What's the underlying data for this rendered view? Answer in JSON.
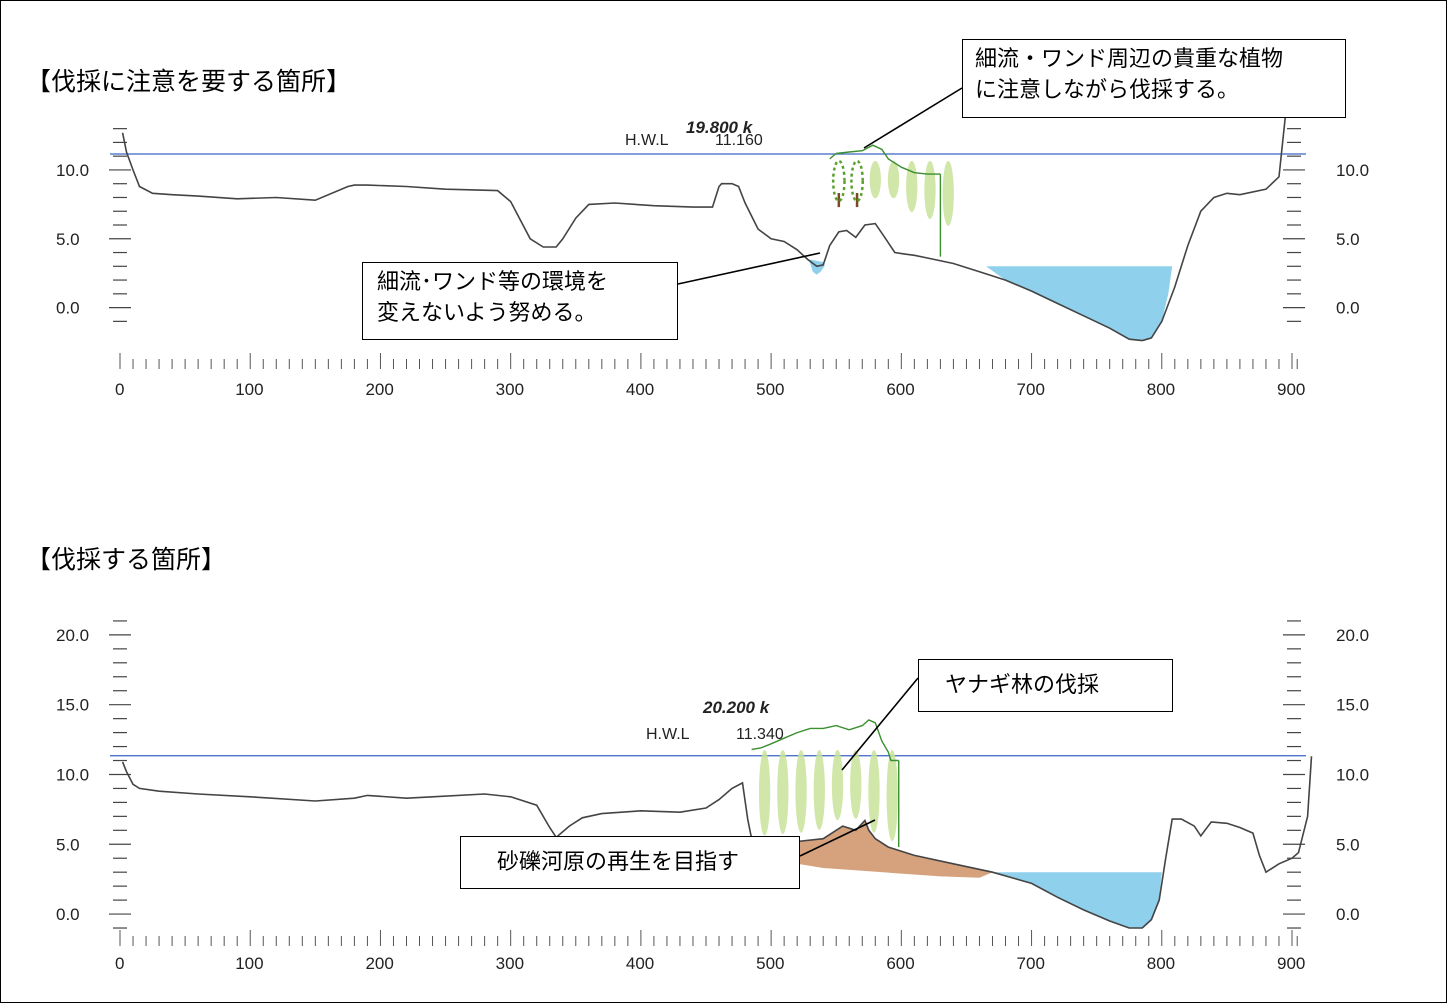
{
  "headings": {
    "top": "【伐採に注意を要する箇所】",
    "bottom": "【伐採する箇所】"
  },
  "chart_data": [
    {
      "type": "line",
      "section": "19.800 k",
      "hwl_label": "H.W.L",
      "hwl_value": "11.160",
      "hwl_level": 11.16,
      "xlim": [
        0,
        900
      ],
      "ylim": [
        -2.5,
        14.5
      ],
      "x_ticks": [
        "0",
        "100",
        "200",
        "300",
        "400",
        "500",
        "600",
        "700",
        "800",
        "900"
      ],
      "y_ticks": [
        "10.0",
        "5.0",
        "0.0"
      ],
      "ground_profile": {
        "x": [
          2,
          5,
          10,
          15,
          25,
          40,
          60,
          90,
          120,
          150,
          175,
          180,
          190,
          220,
          250,
          290,
          300,
          315,
          325,
          335,
          340,
          350,
          360,
          380,
          410,
          440,
          455,
          460,
          462,
          465,
          470,
          475,
          480,
          490,
          500,
          510,
          520,
          528,
          535,
          540,
          545,
          552,
          558,
          565,
          572,
          580,
          588,
          595,
          602,
          610,
          620,
          640,
          660,
          680,
          700,
          720,
          740,
          760,
          775,
          785,
          792,
          800,
          810,
          820,
          830,
          840,
          850,
          860,
          880,
          890,
          895
        ],
        "y": [
          12.7,
          11.3,
          10.0,
          8.8,
          8.3,
          8.2,
          8.1,
          7.9,
          8.0,
          7.8,
          8.8,
          8.9,
          8.9,
          8.8,
          8.6,
          8.5,
          7.7,
          5.0,
          4.4,
          4.4,
          5.0,
          6.5,
          7.5,
          7.6,
          7.4,
          7.3,
          7.3,
          8.8,
          9.0,
          9.0,
          9.0,
          8.8,
          7.6,
          5.7,
          5.0,
          4.8,
          4.2,
          3.5,
          3.0,
          3.1,
          4.5,
          5.5,
          5.6,
          5.1,
          6.0,
          6.1,
          5.0,
          4.0,
          3.9,
          3.8,
          3.6,
          3.2,
          2.6,
          2.0,
          1.2,
          0.3,
          -0.6,
          -1.5,
          -2.3,
          -2.4,
          -2.2,
          -1.0,
          1.5,
          4.5,
          7.0,
          8.0,
          8.3,
          8.2,
          8.6,
          9.5,
          14.0
        ]
      },
      "vegetation_top": {
        "x": [
          545,
          550,
          560,
          570,
          578,
          585,
          590,
          600,
          610,
          620,
          630
        ],
        "y": [
          10.8,
          11.2,
          11.3,
          11.4,
          11.8,
          11.5,
          10.8,
          10.2,
          9.8,
          9.7,
          9.7
        ]
      },
      "water_bodies": [
        {
          "x": [
            529,
            532,
            535,
            538,
            541,
            541,
            529
          ],
          "y": [
            3.5,
            2.6,
            2.4,
            2.6,
            3.0,
            3.3,
            3.5
          ]
        },
        {
          "x": [
            665,
            680,
            700,
            720,
            740,
            760,
            775,
            785,
            792,
            800,
            805,
            808
          ],
          "y": [
            3.0,
            2.0,
            1.2,
            0.3,
            -0.6,
            -1.5,
            -2.3,
            -2.4,
            -2.2,
            -1.0,
            1.0,
            3.0
          ]
        }
      ],
      "trees": {
        "x": [
          552,
          566,
          580,
          594,
          608,
          622,
          636
        ],
        "y": [
          7.3,
          7.3,
          7.5,
          7.5,
          6.5,
          6.0,
          5.5
        ]
      },
      "highlighted_trees": 2,
      "color_profile": "#444444",
      "color_vegetation": "#3a8f2e",
      "color_water": "#8fd0ec",
      "color_hwl": "#3a63c4",
      "color_tree": "#c8e39a",
      "color_highlight": "#5aa02c",
      "color_trunk": "#7a4a28"
    },
    {
      "type": "line",
      "section": "20.200 k",
      "hwl_label": "H.W.L",
      "hwl_value": "11.340",
      "hwl_level": 11.34,
      "xlim": [
        0,
        900
      ],
      "ylim": [
        -1.5,
        22.5
      ],
      "x_ticks": [
        "0",
        "100",
        "200",
        "300",
        "400",
        "500",
        "600",
        "700",
        "800",
        "900"
      ],
      "y_ticks": [
        "20.0",
        "15.0",
        "10.0",
        "5.0",
        "0.0"
      ],
      "ground_profile": {
        "x": [
          2,
          5,
          10,
          15,
          30,
          60,
          100,
          150,
          180,
          190,
          220,
          240,
          280,
          300,
          320,
          330,
          335,
          345,
          355,
          370,
          400,
          430,
          450,
          460,
          470,
          478,
          482,
          485,
          495,
          505,
          520,
          540,
          555,
          565,
          572,
          575,
          580,
          590,
          610,
          640,
          670,
          700,
          720,
          740,
          760,
          775,
          785,
          792,
          798,
          803,
          808,
          815,
          825,
          830,
          838,
          850,
          860,
          870,
          875,
          880,
          890,
          900,
          905,
          912,
          915
        ],
        "y": [
          10.9,
          10.2,
          9.3,
          9.0,
          8.8,
          8.6,
          8.4,
          8.1,
          8.3,
          8.5,
          8.3,
          8.4,
          8.6,
          8.4,
          7.8,
          6.2,
          5.5,
          6.3,
          6.9,
          7.2,
          7.4,
          7.3,
          7.6,
          8.2,
          9.0,
          9.4,
          6.8,
          5.4,
          5.2,
          4.8,
          5.2,
          5.4,
          6.3,
          6.0,
          6.7,
          6.0,
          5.4,
          4.8,
          4.2,
          3.6,
          3.0,
          2.2,
          1.2,
          0.3,
          -0.5,
          -1.0,
          -1.0,
          -0.4,
          1.0,
          4.0,
          6.8,
          6.8,
          6.3,
          5.6,
          6.6,
          6.5,
          6.2,
          5.8,
          4.2,
          3.0,
          3.6,
          4.0,
          4.4,
          7.0,
          11.3
        ]
      },
      "vegetation_top": {
        "x": [
          485,
          492,
          500,
          510,
          520,
          530,
          540,
          550,
          560,
          570,
          575,
          580,
          585,
          590,
          592,
          598
        ],
        "y": [
          11.8,
          11.9,
          12.2,
          12.6,
          13.0,
          13.3,
          13.3,
          13.5,
          13.2,
          13.5,
          13.9,
          13.7,
          12.4,
          11.6,
          11.0,
          11.0
        ]
      },
      "gravel_bar": {
        "x": [
          505,
          520,
          540,
          555,
          565,
          572,
          575,
          580,
          590,
          610,
          640,
          670,
          660,
          630,
          600,
          570,
          540,
          520,
          510
        ],
        "y": [
          4.8,
          5.2,
          5.4,
          6.3,
          6.0,
          6.7,
          6.0,
          5.4,
          4.8,
          4.2,
          3.6,
          3.0,
          2.6,
          2.7,
          2.9,
          3.1,
          3.3,
          3.6,
          4.0
        ]
      },
      "water_bodies": [
        {
          "x": [
            665,
            670,
            700,
            720,
            740,
            760,
            775,
            785,
            792,
            798,
            800
          ],
          "y": [
            3.0,
            3.0,
            2.2,
            1.2,
            0.3,
            -0.5,
            -1.0,
            -1.0,
            -0.4,
            1.0,
            3.0
          ]
        }
      ],
      "trees": {
        "x": [
          495,
          509,
          523,
          537,
          551,
          565,
          579,
          593
        ],
        "y": [
          5.2,
          5.3,
          5.4,
          5.6,
          6.3,
          6.4,
          5.4,
          4.8
        ]
      },
      "color_profile": "#444444",
      "color_vegetation": "#3a8f2e",
      "color_water": "#8fd0ec",
      "color_hwl": "#3a63c4",
      "color_tree": "#c8e39a",
      "color_gravel": "#d6a27e"
    }
  ],
  "callouts": {
    "top_right": {
      "line1": "細流・ワンド周辺の貴重な植物",
      "line2": "に注意しながら伐採する。"
    },
    "top_left": {
      "line1": "細流･ワンド等の環境を",
      "line2": "変えないよう努める。"
    },
    "bottom_right": {
      "text": "ヤナギ林の伐採"
    },
    "bottom_left": {
      "text": "砂礫河原の再生を目指す"
    }
  }
}
